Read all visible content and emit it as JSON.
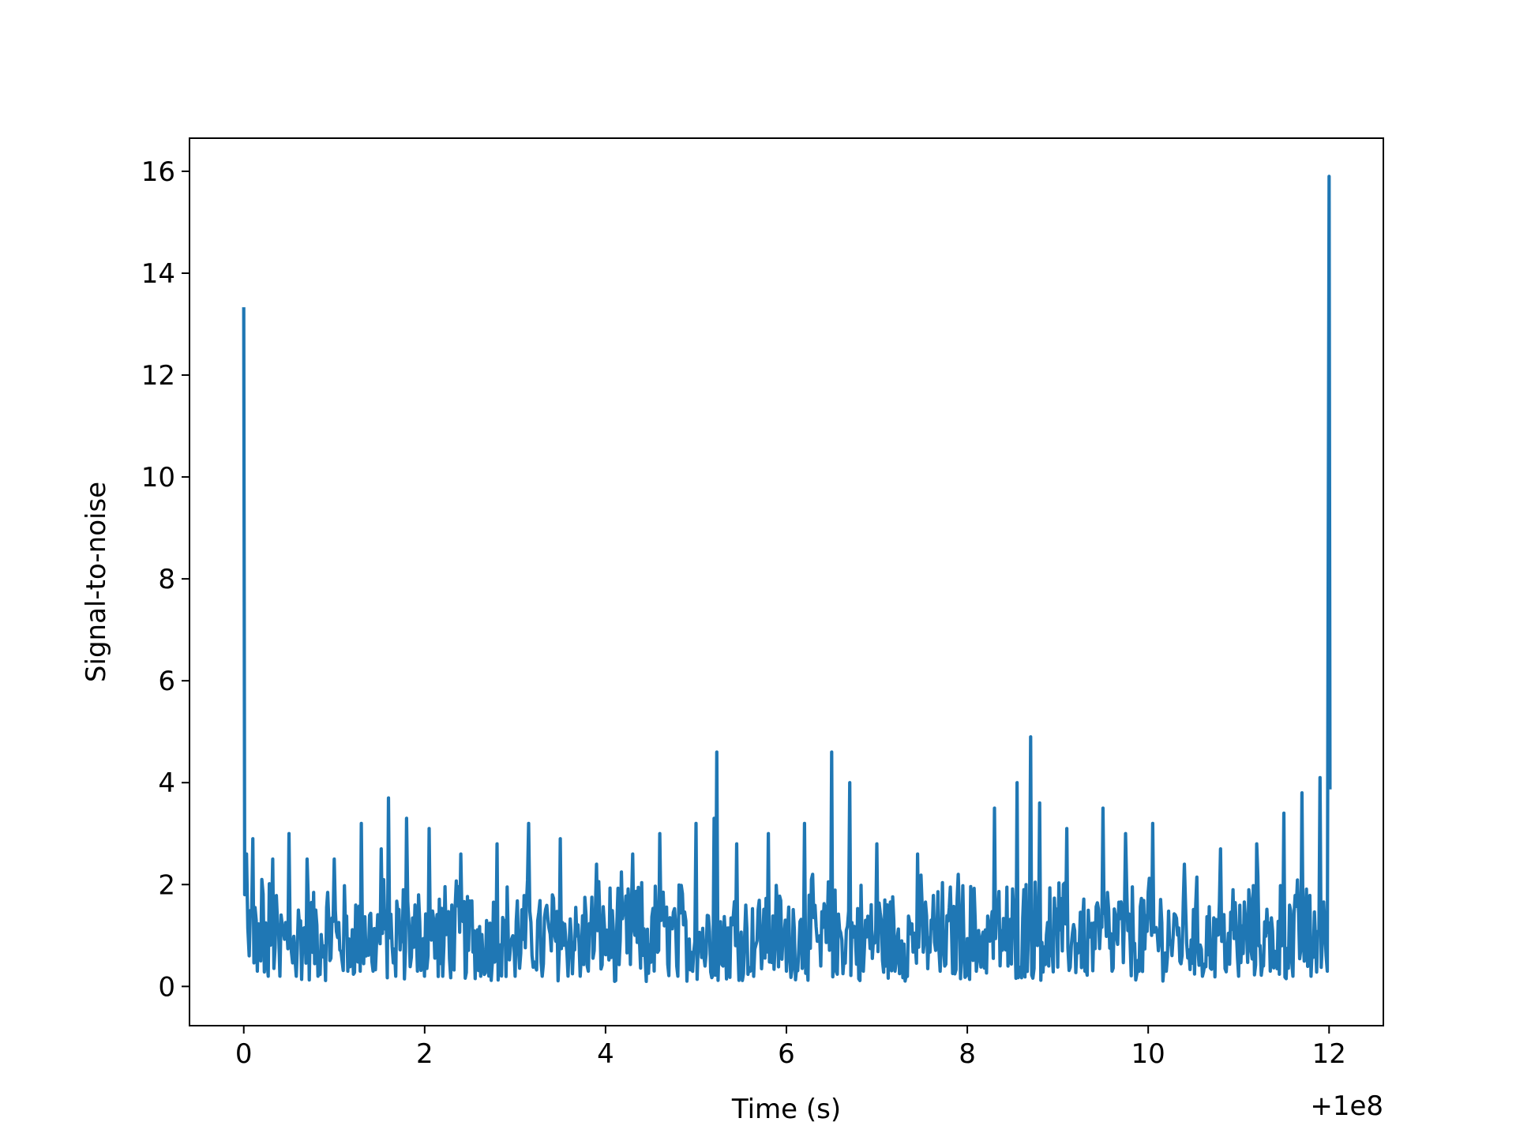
{
  "chart_data": {
    "type": "line",
    "title": "",
    "xlabel": "Time (s)",
    "ylabel": "Signal-to-noise",
    "x_offset_label": "+1e8",
    "xlim": [
      -0.6,
      12.6
    ],
    "ylim": [
      -0.77,
      16.65
    ],
    "x_ticks": [
      0,
      2,
      4,
      6,
      8,
      10,
      12
    ],
    "y_ticks": [
      0,
      2,
      4,
      6,
      8,
      10,
      12,
      14,
      16
    ],
    "grid": false,
    "legend": "none",
    "series": [
      {
        "color": "#1f77b4",
        "x": [
          0.0,
          0.01,
          0.03,
          0.06,
          0.1,
          0.15,
          0.2,
          0.27,
          0.32,
          0.4,
          0.5,
          0.58,
          0.7,
          0.82,
          1.0,
          1.15,
          1.3,
          1.43,
          1.52,
          1.6,
          1.68,
          1.8,
          1.92,
          2.05,
          2.2,
          2.4,
          2.62,
          2.8,
          3.0,
          3.15,
          3.3,
          3.5,
          3.72,
          3.9,
          4.1,
          4.3,
          4.45,
          4.6,
          4.8,
          5.0,
          5.1,
          5.2,
          5.23,
          5.3,
          5.45,
          5.6,
          5.8,
          6.0,
          6.2,
          6.38,
          6.5,
          6.55,
          6.7,
          6.85,
          7.0,
          7.2,
          7.45,
          7.7,
          7.9,
          8.1,
          8.3,
          8.45,
          8.55,
          8.65,
          8.7,
          8.8,
          8.9,
          9.1,
          9.3,
          9.5,
          9.6,
          9.75,
          9.9,
          10.05,
          10.2,
          10.4,
          10.6,
          10.8,
          11.0,
          11.2,
          11.35,
          11.5,
          11.6,
          11.7,
          11.8,
          11.9,
          11.98,
          12.0,
          12.01
        ],
        "y": [
          13.3,
          1.8,
          2.6,
          0.6,
          2.9,
          0.3,
          2.1,
          0.2,
          2.5,
          0.2,
          3.0,
          0.2,
          2.5,
          0.2,
          2.5,
          0.3,
          3.2,
          0.3,
          2.7,
          3.7,
          0.2,
          3.3,
          0.3,
          3.1,
          0.2,
          2.6,
          0.2,
          2.8,
          0.2,
          3.2,
          0.2,
          2.9,
          0.2,
          2.4,
          0.1,
          2.6,
          0.1,
          3.0,
          0.2,
          3.2,
          0.4,
          3.3,
          4.6,
          0.4,
          2.8,
          0.3,
          3.0,
          0.3,
          3.2,
          0.4,
          4.6,
          0.3,
          4.0,
          0.3,
          2.8,
          0.3,
          2.6,
          0.3,
          2.2,
          0.3,
          3.5,
          0.4,
          4.0,
          2.0,
          4.9,
          3.6,
          0.4,
          3.1,
          0.3,
          3.5,
          0.3,
          3.0,
          0.3,
          3.2,
          0.3,
          2.4,
          0.2,
          2.7,
          0.2,
          2.8,
          0.3,
          3.4,
          0.2,
          3.8,
          0.2,
          4.1,
          0.3,
          15.9,
          3.9
        ]
      }
    ]
  }
}
